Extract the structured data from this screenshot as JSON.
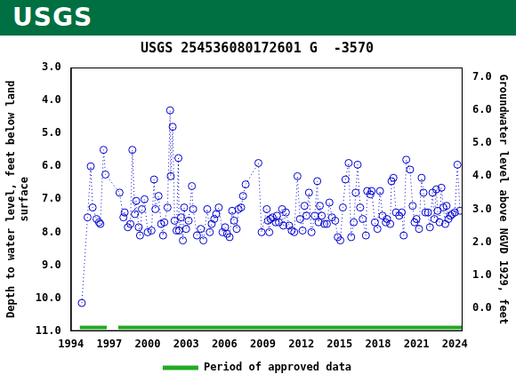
{
  "header": {
    "text": "USGS"
  },
  "chart_data": {
    "type": "line",
    "title": "USGS 254536080172601 G  -3570",
    "x_label": "",
    "y_label": [
      "Depth to water level, feet below land",
      "surface"
    ],
    "y2_label": "Groundwater level above NGVD 1929, feet",
    "xlim": [
      1994,
      2024.6
    ],
    "xticks": [
      1994,
      1997,
      2000,
      2003,
      2006,
      2009,
      2012,
      2015,
      2018,
      2021,
      2024
    ],
    "ylim": [
      3,
      11
    ],
    "reverse_y": true,
    "yticks": [
      {
        "value": 3,
        "label": "3.0"
      },
      {
        "value": 4,
        "label": "4.0"
      },
      {
        "value": 5,
        "label": "5.0"
      },
      {
        "value": 6,
        "label": "6.0"
      },
      {
        "value": 7,
        "label": "7.0"
      },
      {
        "value": 8,
        "label": "8.0"
      },
      {
        "value": 9,
        "label": "9.0"
      },
      {
        "value": 10,
        "label": "10.0"
      },
      {
        "value": 11,
        "label": "11.0"
      }
    ],
    "y2lim": [
      -0.7,
      7.3
    ],
    "y2ticks": [
      {
        "value": 0,
        "label": "0.0"
      },
      {
        "value": 1,
        "label": "1.0"
      },
      {
        "value": 2,
        "label": "2.0"
      },
      {
        "value": 3,
        "label": "3.0"
      },
      {
        "value": 4,
        "label": "4.0"
      },
      {
        "value": 5,
        "label": "5.0"
      },
      {
        "value": 6,
        "label": "6.0"
      },
      {
        "value": 7,
        "label": "7.0"
      }
    ],
    "grid": false,
    "legend": "bottom",
    "series": [
      {
        "color": "#0000cc",
        "marker": "circle",
        "line_style": "dotted",
        "x": [
          1994.85,
          1995.3,
          1995.55,
          1995.7,
          1996.0,
          1996.2,
          1996.3,
          1996.55,
          1996.7,
          1997.8,
          1998.1,
          1998.2,
          1998.45,
          1998.65,
          1998.8,
          1999.0,
          1999.1,
          1999.3,
          1999.4,
          1999.55,
          1999.75,
          2000.0,
          2000.3,
          2000.5,
          2000.6,
          2000.85,
          2001.05,
          2001.2,
          2001.3,
          2001.55,
          2001.75,
          2001.8,
          2001.95,
          2002.1,
          2002.25,
          2002.4,
          2002.45,
          2002.6,
          2002.75,
          2002.85,
          2003.0,
          2003.2,
          2003.45,
          2003.55,
          2003.85,
          2004.15,
          2004.35,
          2004.65,
          2004.85,
          2005.0,
          2005.2,
          2005.35,
          2005.55,
          2005.85,
          2006.05,
          2006.2,
          2006.4,
          2006.6,
          2006.75,
          2006.95,
          2007.1,
          2007.3,
          2007.45,
          2007.65,
          2008.65,
          2008.9,
          2009.3,
          2009.4,
          2009.5,
          2009.6,
          2009.75,
          2010.0,
          2010.1,
          2010.25,
          2010.5,
          2010.6,
          2010.8,
          2011.05,
          2011.25,
          2011.45,
          2011.7,
          2011.9,
          2012.1,
          2012.25,
          2012.4,
          2012.6,
          2012.8,
          2013.05,
          2013.25,
          2013.35,
          2013.45,
          2013.6,
          2013.8,
          2014.0,
          2014.2,
          2014.4,
          2014.65,
          2014.85,
          2015.05,
          2015.25,
          2015.45,
          2015.7,
          2015.9,
          2016.1,
          2016.25,
          2016.4,
          2016.6,
          2016.8,
          2017.05,
          2017.15,
          2017.4,
          2017.5,
          2017.75,
          2017.95,
          2018.15,
          2018.35,
          2018.6,
          2018.7,
          2018.95,
          2019.05,
          2019.2,
          2019.4,
          2019.65,
          2019.85,
          2020.0,
          2020.2,
          2020.5,
          2020.7,
          2020.85,
          2021.0,
          2021.2,
          2021.4,
          2021.55,
          2021.7,
          2021.9,
          2022.05,
          2022.25,
          2022.4,
          2022.55,
          2022.65,
          2022.8,
          2022.95,
          2023.1,
          2023.25,
          2023.35,
          2023.5,
          2023.65,
          2023.8,
          2024.0,
          2024.2,
          2024.4
        ],
        "values": [
          10.15,
          7.55,
          6.0,
          7.25,
          7.6,
          7.7,
          7.75,
          5.5,
          6.25,
          6.8,
          7.55,
          7.4,
          7.85,
          7.75,
          5.5,
          7.45,
          7.05,
          7.85,
          8.1,
          7.3,
          7.0,
          8.0,
          7.95,
          6.4,
          7.3,
          6.9,
          7.75,
          8.1,
          7.7,
          7.25,
          4.3,
          6.3,
          4.8,
          7.65,
          7.95,
          5.75,
          7.95,
          7.55,
          8.25,
          7.25,
          7.9,
          7.65,
          6.6,
          7.3,
          8.1,
          7.9,
          8.25,
          7.3,
          8.0,
          7.75,
          7.6,
          7.45,
          7.25,
          8.0,
          7.85,
          8.05,
          8.15,
          7.35,
          7.65,
          7.9,
          7.3,
          7.25,
          6.9,
          6.55,
          5.9,
          8.0,
          7.3,
          7.65,
          8.0,
          7.6,
          7.55,
          7.7,
          7.5,
          7.7,
          7.3,
          7.8,
          7.4,
          7.8,
          7.95,
          8.0,
          6.3,
          7.6,
          7.95,
          7.2,
          7.5,
          6.8,
          8.0,
          7.5,
          6.45,
          7.7,
          7.2,
          7.5,
          7.75,
          7.75,
          7.1,
          7.55,
          7.65,
          8.15,
          8.25,
          7.25,
          6.4,
          5.9,
          8.15,
          7.7,
          6.8,
          5.95,
          7.25,
          7.6,
          8.1,
          6.75,
          6.85,
          6.75,
          7.7,
          7.9,
          6.75,
          7.5,
          7.7,
          7.6,
          7.75,
          6.45,
          6.35,
          7.4,
          7.5,
          7.4,
          8.1,
          5.8,
          6.1,
          7.2,
          7.7,
          7.6,
          7.9,
          6.35,
          6.8,
          7.4,
          7.4,
          7.85,
          6.8,
          7.6,
          6.7,
          7.35,
          7.7,
          6.65,
          7.25,
          7.75,
          7.2,
          7.6,
          7.5,
          7.45,
          7.4,
          5.95,
          7.35
        ]
      }
    ],
    "approved_periods": {
      "name": "Period of approved data",
      "color": "#22aa22",
      "ranges": [
        [
          1994.7,
          1996.8
        ],
        [
          1997.7,
          2024.6
        ]
      ]
    }
  }
}
